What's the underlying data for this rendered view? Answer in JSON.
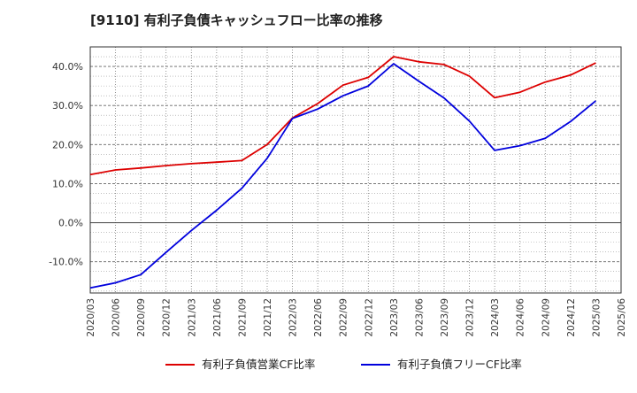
{
  "chart_data": {
    "type": "line",
    "title": "[9110]  有利子負債キャッシュフロー比率の推移",
    "xlabel": "",
    "ylabel": "",
    "x": [
      "2020/03",
      "2020/06",
      "2020/09",
      "2020/12",
      "2021/03",
      "2021/06",
      "2021/09",
      "2021/12",
      "2022/03",
      "2022/06",
      "2022/09",
      "2022/12",
      "2023/03",
      "2023/06",
      "2023/09",
      "2023/12",
      "2024/03",
      "2024/06",
      "2024/09",
      "2024/12",
      "2025/03",
      "2025/06"
    ],
    "yticks": [
      "40.0%",
      "30.0%",
      "20.0%",
      "10.0%",
      "0.0%",
      "-10.0%"
    ],
    "ylim": [
      -18,
      45
    ],
    "grid": true,
    "legend_position": "bottom",
    "series": [
      {
        "name": "有利子負債営業CF比率",
        "color": "#dd0000",
        "values": [
          12.3,
          13.5,
          14.0,
          14.6,
          15.1,
          15.5,
          15.9,
          20.0,
          26.8,
          30.5,
          35.2,
          37.2,
          42.5,
          41.2,
          40.5,
          37.5,
          32.0,
          33.4,
          36.0,
          37.8,
          40.9,
          null
        ]
      },
      {
        "name": "有利子負債フリーCF比率",
        "color": "#0000dd",
        "values": [
          -16.7,
          -15.4,
          -13.3,
          -7.6,
          -2.0,
          3.2,
          8.8,
          16.5,
          26.7,
          29.1,
          32.5,
          35.0,
          40.7,
          36.2,
          31.9,
          26.0,
          18.5,
          19.7,
          21.6,
          25.9,
          31.2,
          null
        ]
      }
    ]
  }
}
